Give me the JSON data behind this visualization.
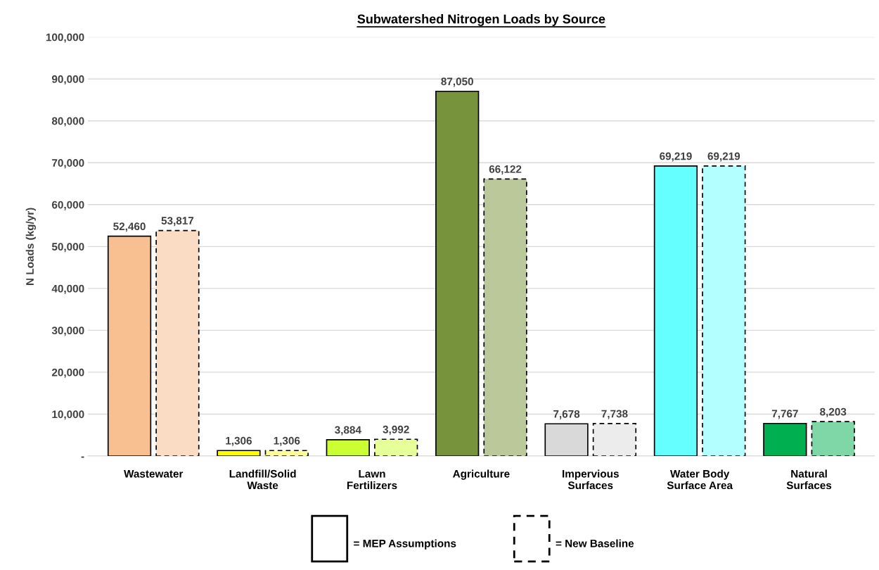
{
  "chart_data": {
    "type": "bar",
    "title": "Subwatershed Nitrogen Loads by Source",
    "ylabel": "N Loads (kg/yr)",
    "categories": [
      "Wastewater",
      "Landfill/Solid\nWaste",
      "Lawn\nFertilizers",
      "Agriculture",
      "Impervious\nSurfaces",
      "Water Body\nSurface Area",
      "Natural\nSurfaces"
    ],
    "series": [
      {
        "line_style": "solid",
        "colors": [
          "#f8c090",
          "#ffff00",
          "#ccff33",
          "#77933c",
          "#d9d9d9",
          "#66ffff",
          "#00b050"
        ],
        "values": [
          52460,
          1306,
          3884,
          87050,
          7678,
          69219,
          7767
        ],
        "value_labels": [
          "52,460",
          "1,306",
          "3,884",
          "87,050",
          "7,678",
          "69,219",
          "7,767"
        ]
      },
      {
        "line_style": "dashed",
        "colors": [
          "#fadbc4",
          "#ffff99",
          "#e6ff99",
          "#bbc99a",
          "#ececec",
          "#b3ffff",
          "#7fd7a7"
        ],
        "values": [
          53817,
          1306,
          3992,
          66122,
          7738,
          69219,
          8203
        ],
        "value_labels": [
          "53,817",
          "1,306",
          "3,992",
          "66,122",
          "7,738",
          "69,219",
          "8,203"
        ]
      }
    ],
    "ylim": [
      0,
      100000
    ],
    "yticks": [
      {
        "value": 0,
        "label": "-"
      },
      {
        "value": 10000,
        "label": "10,000"
      },
      {
        "value": 20000,
        "label": "20,000"
      },
      {
        "value": 30000,
        "label": "30,000"
      },
      {
        "value": 40000,
        "label": "40,000"
      },
      {
        "value": 50000,
        "label": "50,000"
      },
      {
        "value": 60000,
        "label": "60,000"
      },
      {
        "value": 70000,
        "label": "70,000"
      },
      {
        "value": 80000,
        "label": "80,000"
      },
      {
        "value": 90000,
        "label": "90,000"
      },
      {
        "value": 100000,
        "label": "100,000"
      }
    ],
    "annotations": [
      "= MEP Assumptions",
      "= New Baseline"
    ],
    "grid": "y"
  }
}
